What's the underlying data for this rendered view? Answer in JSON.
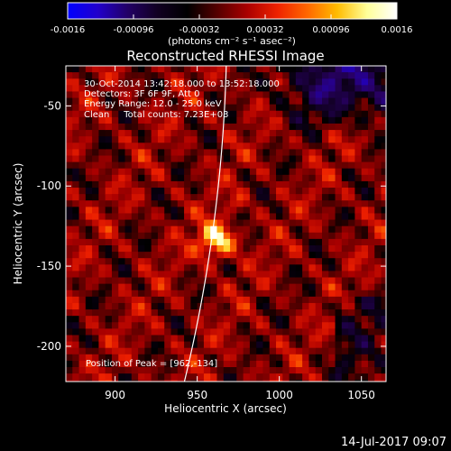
{
  "chart_data": {
    "type": "heatmap",
    "title": "Reconstructed RHESSI Image",
    "xlabel": "Heliocentric X (arcsec)",
    "ylabel": "Heliocentric Y (arcsec)",
    "xlim": [
      870,
      1065
    ],
    "ylim": [
      -222,
      -25
    ],
    "x_ticks": [
      "900",
      "950",
      "1000",
      "1050"
    ],
    "x_tick_values": [
      900,
      950,
      1000,
      1050
    ],
    "y_ticks": [
      "-50",
      "-100",
      "-150",
      "-200"
    ],
    "y_tick_values": [
      -50,
      -100,
      -150,
      -200
    ],
    "colorbar": {
      "min": -0.0016,
      "max": 0.0016,
      "tick_labels": [
        "-0.0016",
        "-0.00096",
        "-0.00032",
        "0.00032",
        "0.00096",
        "0.0016"
      ],
      "units_label": "(photons cm⁻² s⁻¹ asec⁻²)",
      "colors": [
        "#0000ff",
        "#2200cc",
        "#220066",
        "#110022",
        "#000000",
        "#550000",
        "#aa0000",
        "#ee2200",
        "#ff6600",
        "#ffbb00",
        "#ffff99",
        "#ffffff"
      ]
    },
    "annotations": {
      "time_range": "30-Oct-2014 13:42:18.000 to 13:52:18.000",
      "detectors": "Detectors: 3F 6F 9F, Att 0",
      "energy_range": "Energy Range: 12.0 - 25.0 keV",
      "algorithm": "Clean     Total counts: 7.23E+03",
      "peak_position": "Position of Peak = [962,-134]"
    },
    "peak": {
      "x": 962,
      "y": -134
    },
    "footer_date": "14-Jul-2017 09:07"
  }
}
